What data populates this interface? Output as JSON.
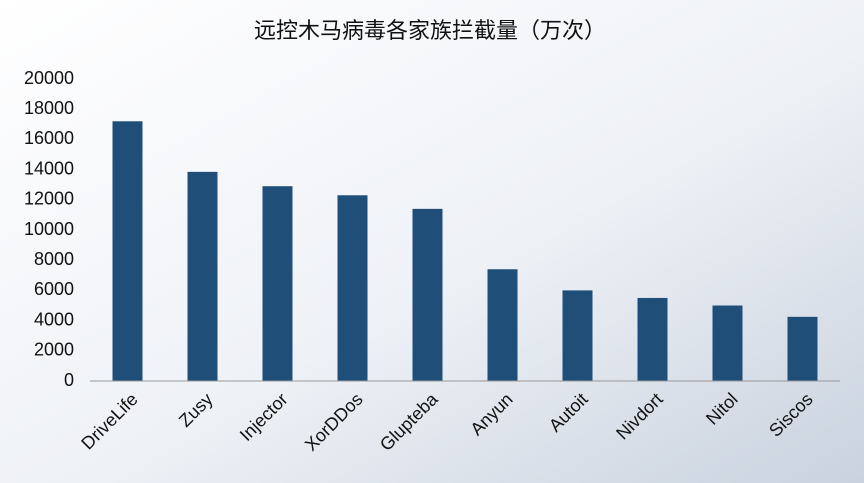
{
  "chart_data": {
    "type": "bar",
    "title": "远控木马病毒各家族拦截量（万次）",
    "categories": [
      "DriveLife",
      "Zusy",
      "Injector",
      "XorDDos",
      "Glupteba",
      "Anyun",
      "Autoit",
      "Nivdort",
      "Nitol",
      "Siscos"
    ],
    "values": [
      17200,
      13850,
      12900,
      12300,
      11400,
      7400,
      6000,
      5500,
      5000,
      4250
    ],
    "color": "#1f4e79",
    "ylim": [
      0,
      20000
    ],
    "yticks": [
      0,
      2000,
      4000,
      6000,
      8000,
      10000,
      12000,
      14000,
      16000,
      18000,
      20000
    ],
    "grid": false
  }
}
